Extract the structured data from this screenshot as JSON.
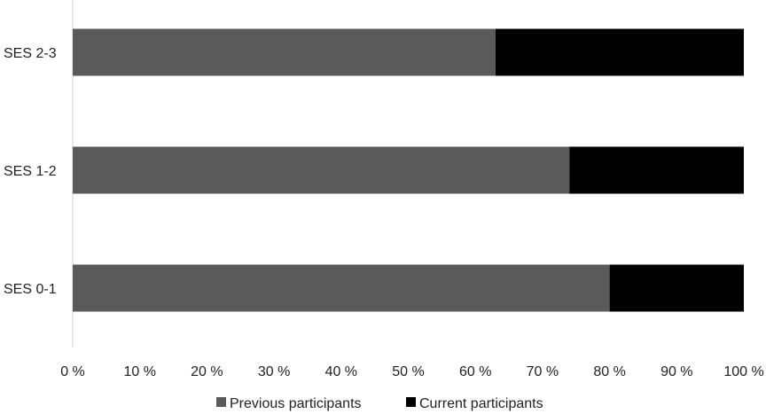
{
  "chart_data": {
    "type": "bar",
    "orientation": "horizontal",
    "stacked": "percent",
    "categories": [
      "SES 2-3",
      "SES 1-2",
      "SES 0-1"
    ],
    "series": [
      {
        "name": "Previous participants",
        "values": [
          63,
          74,
          80
        ],
        "color": "#5a5a5a"
      },
      {
        "name": "Current participants",
        "values": [
          37,
          26,
          20
        ],
        "color": "#000000"
      }
    ],
    "xlim": [
      0,
      100
    ],
    "x_ticks": [
      "0 %",
      "10 %",
      "20 %",
      "30 %",
      "40 %",
      "50 %",
      "60 %",
      "70 %",
      "80 %",
      "90 %",
      "100 %"
    ],
    "grid": false,
    "legend_position": "bottom"
  }
}
